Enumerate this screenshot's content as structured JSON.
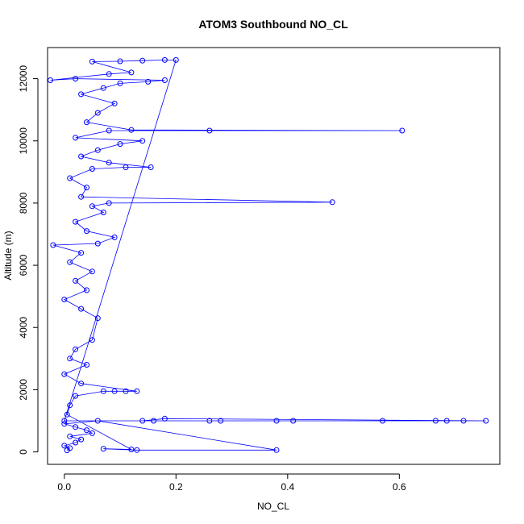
{
  "chart_data": {
    "type": "scatter",
    "title": "ATOM3 Southbound NO_CL",
    "xlabel": "NO_CL",
    "ylabel": "Altitude (m)",
    "xlim": [
      -0.03,
      0.78
    ],
    "ylim": [
      -400,
      13000
    ],
    "xticks": [
      0.0,
      0.2,
      0.4,
      0.6
    ],
    "xtick_labels": [
      "0.0",
      "0.2",
      "0.4",
      "0.6"
    ],
    "yticks": [
      0,
      2000,
      4000,
      6000,
      8000,
      10000,
      12000
    ],
    "ytick_labels": [
      "0",
      "2000",
      "4000",
      "6000",
      "8000",
      "10000",
      "12000"
    ],
    "grid": false,
    "marker": "open-circle",
    "connected_by_line": true,
    "color": "#0000ff",
    "series": [
      {
        "points": [
          [
            0.005,
            50
          ],
          [
            0.01,
            120
          ],
          [
            0.0,
            200
          ],
          [
            0.02,
            300
          ],
          [
            0.03,
            400
          ],
          [
            0.01,
            500
          ],
          [
            0.05,
            600
          ],
          [
            0.04,
            700
          ],
          [
            0.02,
            800
          ],
          [
            0.0,
            900
          ],
          [
            0.06,
            1000
          ],
          [
            0.38,
            60
          ],
          [
            0.13,
            60
          ],
          [
            0.07,
            100
          ],
          [
            0.12,
            80
          ],
          [
            0.005,
            1200
          ],
          [
            0.01,
            1500
          ],
          [
            0.02,
            1800
          ],
          [
            0.07,
            1950
          ],
          [
            0.09,
            1950
          ],
          [
            0.11,
            1950
          ],
          [
            0.13,
            1950
          ],
          [
            0.03,
            2200
          ],
          [
            0.0,
            2500
          ],
          [
            0.04,
            2800
          ],
          [
            0.01,
            3000
          ],
          [
            0.02,
            3300
          ],
          [
            0.05,
            3600
          ],
          [
            0.06,
            4300
          ],
          [
            0.03,
            4600
          ],
          [
            0.0,
            4900
          ],
          [
            0.04,
            5200
          ],
          [
            0.02,
            5500
          ],
          [
            0.05,
            5800
          ],
          [
            0.01,
            6100
          ],
          [
            0.03,
            6400
          ],
          [
            -0.02,
            6650
          ],
          [
            0.06,
            6700
          ],
          [
            0.09,
            6900
          ],
          [
            0.04,
            7100
          ],
          [
            0.02,
            7400
          ],
          [
            0.07,
            7700
          ],
          [
            0.05,
            7900
          ],
          [
            0.08,
            8000
          ],
          [
            0.48,
            8030
          ],
          [
            0.03,
            8200
          ],
          [
            0.04,
            8500
          ],
          [
            0.01,
            8800
          ],
          [
            0.05,
            9100
          ],
          [
            0.11,
            9150
          ],
          [
            0.155,
            9150
          ],
          [
            0.08,
            9300
          ],
          [
            0.03,
            9500
          ],
          [
            0.06,
            9700
          ],
          [
            0.1,
            9900
          ],
          [
            0.14,
            10000
          ],
          [
            0.02,
            10100
          ],
          [
            0.08,
            10330
          ],
          [
            0.26,
            10330
          ],
          [
            0.605,
            10330
          ],
          [
            0.12,
            10350
          ],
          [
            0.04,
            10600
          ],
          [
            0.06,
            10900
          ],
          [
            0.09,
            11200
          ],
          [
            0.03,
            11500
          ],
          [
            0.07,
            11700
          ],
          [
            0.1,
            11850
          ],
          [
            0.15,
            11900
          ],
          [
            0.18,
            11950
          ],
          [
            0.02,
            12000
          ],
          [
            -0.025,
            11950
          ],
          [
            0.08,
            12150
          ],
          [
            0.12,
            12200
          ],
          [
            0.05,
            12550
          ],
          [
            0.1,
            12560
          ],
          [
            0.14,
            12580
          ],
          [
            0.18,
            12600
          ],
          [
            0.2,
            12600
          ],
          [
            0.0,
            1000
          ],
          [
            0.16,
            1000
          ],
          [
            0.26,
            1000
          ],
          [
            0.28,
            1000
          ],
          [
            0.38,
            1000
          ],
          [
            0.41,
            1000
          ],
          [
            0.57,
            1000
          ],
          [
            0.665,
            1000
          ],
          [
            0.685,
            1000
          ],
          [
            0.715,
            1000
          ],
          [
            0.755,
            1000
          ],
          [
            0.18,
            1070
          ],
          [
            0.14,
            1000
          ]
        ]
      }
    ]
  }
}
